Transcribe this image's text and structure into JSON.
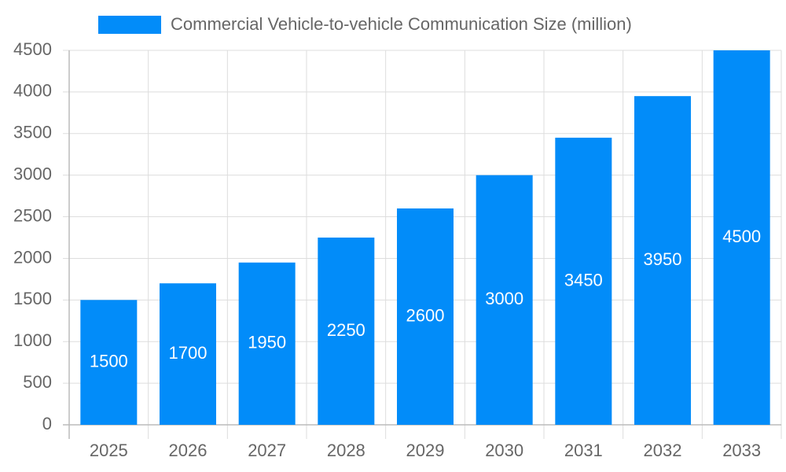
{
  "chart_data": {
    "type": "bar",
    "categories": [
      "2025",
      "2026",
      "2027",
      "2028",
      "2029",
      "2030",
      "2031",
      "2032",
      "2033"
    ],
    "series": [
      {
        "name": "Commercial Vehicle-to-vehicle Communication Size (million)",
        "color": "#028cf9",
        "values": [
          1500,
          1700,
          1950,
          2250,
          2600,
          3000,
          3450,
          3950,
          4500
        ]
      }
    ],
    "ylim": [
      0,
      4500
    ],
    "yticks": [
      0,
      500,
      1000,
      1500,
      2000,
      2500,
      3000,
      3500,
      4000,
      4500
    ],
    "grid": true,
    "legend": "top",
    "data_labels": true
  }
}
